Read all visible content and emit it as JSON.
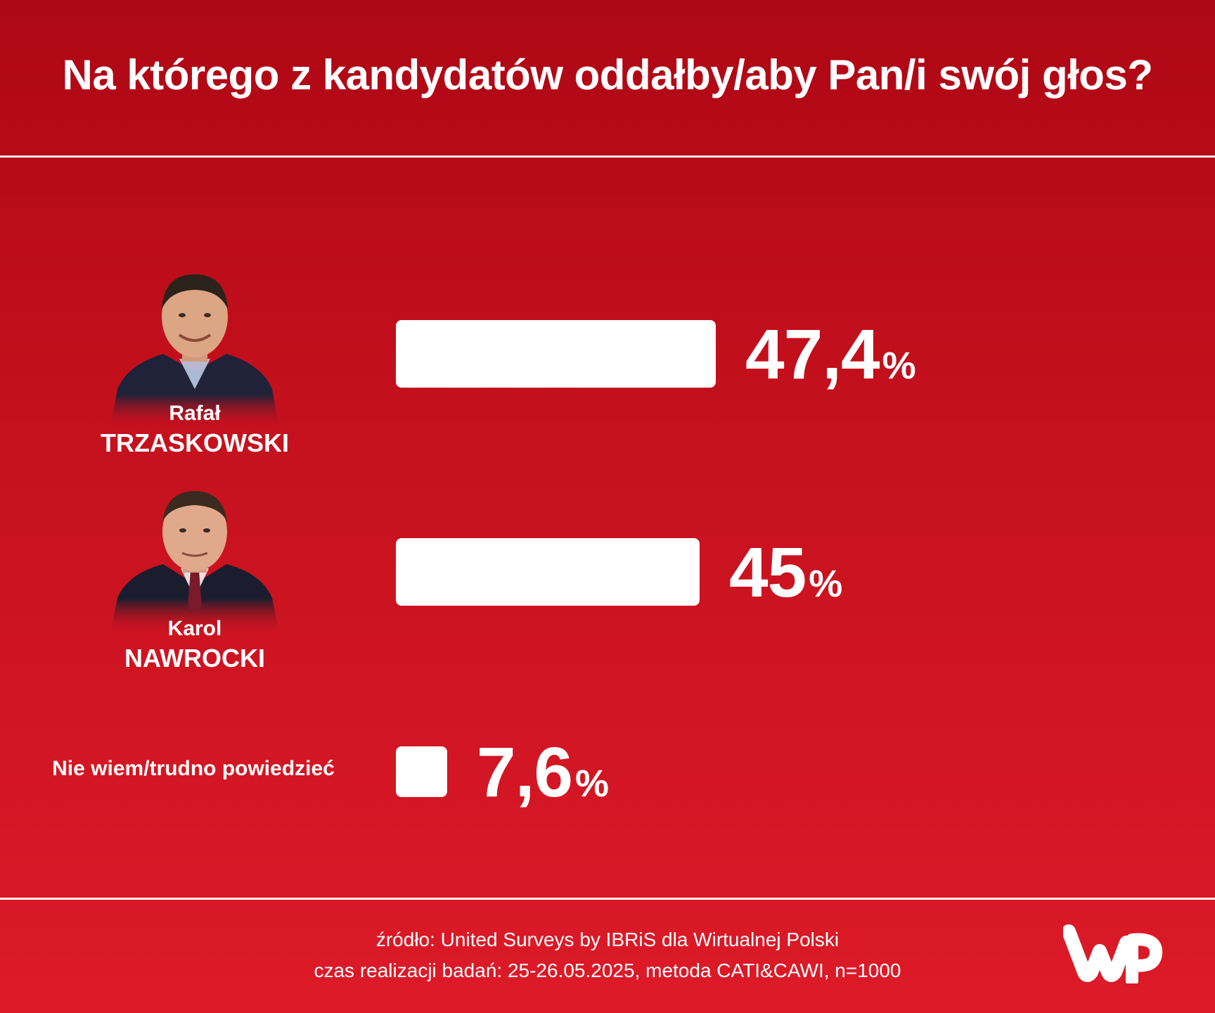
{
  "title": "Na którego z kandydatów oddałby/aby Pan/i swój głos?",
  "chart_data": {
    "type": "bar",
    "orientation": "horizontal",
    "categories": [
      "Rafał TRZASKOWSKI",
      "Karol NAWROCKI",
      "Nie wiem/trudno powiedzieć"
    ],
    "values": [
      47.4,
      45,
      7.6
    ],
    "value_labels": [
      "47,4",
      "45",
      "7,6"
    ],
    "unit": "%",
    "bar_color": "#ffffff",
    "background_color": "#c8121e"
  },
  "candidates": [
    {
      "first_name": "Rafał",
      "last_name": "TRZASKOWSKI"
    },
    {
      "first_name": "Karol",
      "last_name": "NAWROCKI"
    }
  ],
  "other_label": "Nie wiem/trudno powiedzieć",
  "footer": {
    "source": "źródło: United Surveys by IBRiS dla Wirtualnej Polski",
    "method": "czas realizacji badań: 25-26.05.2025, metoda CATI&CAWI, n=1000"
  },
  "logo_text": "WP"
}
